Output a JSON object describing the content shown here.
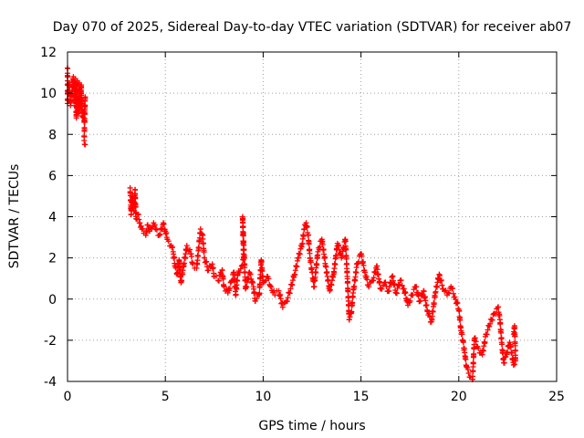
{
  "chart_data": {
    "type": "scatter",
    "title": "Day 070 of 2025, Sidereal Day-to-day VTEC variation (SDTVAR) for receiver ab07",
    "xlabel": "GPS time / hours",
    "ylabel": "SDTVAR / TECUs",
    "xlim": [
      0,
      25
    ],
    "ylim": [
      -4,
      12
    ],
    "xticks": [
      0,
      5,
      10,
      15,
      20,
      25
    ],
    "yticks": [
      -4,
      -2,
      0,
      2,
      4,
      6,
      8,
      10,
      12
    ],
    "grid": true,
    "marker": "+",
    "color": "#ff0000",
    "series": [
      {
        "name": "SDTVAR",
        "points": [
          [
            0.0,
            11.2
          ],
          [
            0.0,
            10.6
          ],
          [
            0.0,
            9.5
          ],
          [
            0.1,
            10.5
          ],
          [
            0.15,
            9.4
          ],
          [
            0.3,
            10.8
          ],
          [
            0.35,
            9.6
          ],
          [
            0.4,
            10.7
          ],
          [
            0.45,
            8.8
          ],
          [
            0.5,
            10.6
          ],
          [
            0.5,
            9.2
          ],
          [
            0.55,
            9.0
          ],
          [
            0.6,
            10.5
          ],
          [
            0.6,
            9.6
          ],
          [
            0.65,
            9.3
          ],
          [
            0.7,
            10.4
          ],
          [
            0.7,
            9.8
          ],
          [
            0.75,
            8.9
          ],
          [
            0.85,
            8.6
          ],
          [
            0.9,
            9.8
          ],
          [
            0.85,
            7.7
          ],
          [
            0.9,
            7.5
          ],
          [
            3.2,
            5.4
          ],
          [
            3.25,
            4.1
          ],
          [
            3.3,
            5.0
          ],
          [
            3.35,
            4.6
          ],
          [
            3.4,
            4.3
          ],
          [
            3.45,
            5.3
          ],
          [
            3.5,
            3.9
          ],
          [
            3.6,
            4.1
          ],
          [
            3.7,
            3.7
          ],
          [
            3.8,
            3.4
          ],
          [
            3.9,
            3.2
          ],
          [
            4.0,
            3.1
          ],
          [
            4.1,
            3.6
          ],
          [
            4.2,
            3.3
          ],
          [
            4.4,
            3.7
          ],
          [
            4.5,
            3.4
          ],
          [
            4.7,
            3.1
          ],
          [
            4.9,
            3.7
          ],
          [
            5.0,
            3.3
          ],
          [
            5.1,
            2.9
          ],
          [
            5.3,
            2.6
          ],
          [
            5.4,
            2.3
          ],
          [
            5.5,
            1.6
          ],
          [
            5.6,
            1.2
          ],
          [
            5.7,
            1.9
          ],
          [
            5.8,
            0.8
          ],
          [
            5.9,
            1.4
          ],
          [
            6.1,
            2.6
          ],
          [
            6.3,
            2.2
          ],
          [
            6.4,
            1.7
          ],
          [
            6.6,
            1.5
          ],
          [
            6.8,
            3.4
          ],
          [
            6.9,
            3.1
          ],
          [
            7.0,
            2.0
          ],
          [
            7.2,
            1.4
          ],
          [
            7.4,
            1.7
          ],
          [
            7.5,
            1.1
          ],
          [
            7.7,
            0.9
          ],
          [
            7.9,
            1.4
          ],
          [
            8.0,
            0.6
          ],
          [
            8.2,
            0.3
          ],
          [
            8.4,
            0.9
          ],
          [
            8.5,
            1.3
          ],
          [
            8.6,
            0.2
          ],
          [
            8.7,
            1.2
          ],
          [
            8.9,
            1.6
          ],
          [
            9.0,
            1.9
          ],
          [
            8.95,
            4.0
          ],
          [
            9.1,
            0.5
          ],
          [
            9.3,
            1.3
          ],
          [
            9.5,
            0.6
          ],
          [
            9.6,
            -0.1
          ],
          [
            9.8,
            0.2
          ],
          [
            9.9,
            1.9
          ],
          [
            10.0,
            0.8
          ],
          [
            10.2,
            1.1
          ],
          [
            10.4,
            0.6
          ],
          [
            10.6,
            0.2
          ],
          [
            10.8,
            0.4
          ],
          [
            11.0,
            -0.4
          ],
          [
            11.2,
            -0.1
          ],
          [
            11.4,
            0.5
          ],
          [
            11.6,
            1.2
          ],
          [
            11.8,
            2.0
          ],
          [
            12.0,
            2.7
          ],
          [
            12.1,
            3.4
          ],
          [
            12.2,
            3.7
          ],
          [
            12.3,
            3.1
          ],
          [
            12.4,
            2.0
          ],
          [
            12.5,
            1.3
          ],
          [
            12.6,
            0.6
          ],
          [
            12.8,
            2.3
          ],
          [
            13.0,
            2.9
          ],
          [
            13.2,
            1.6
          ],
          [
            13.4,
            0.4
          ],
          [
            13.6,
            1.2
          ],
          [
            13.8,
            2.7
          ],
          [
            14.0,
            2.0
          ],
          [
            14.2,
            2.9
          ],
          [
            14.3,
            1.1
          ],
          [
            14.4,
            -1.0
          ],
          [
            14.5,
            -0.7
          ],
          [
            14.6,
            0.3
          ],
          [
            14.8,
            1.7
          ],
          [
            15.0,
            2.2
          ],
          [
            15.2,
            1.3
          ],
          [
            15.4,
            0.6
          ],
          [
            15.6,
            0.9
          ],
          [
            15.8,
            1.6
          ],
          [
            16.0,
            0.5
          ],
          [
            16.2,
            0.8
          ],
          [
            16.4,
            0.4
          ],
          [
            16.6,
            1.1
          ],
          [
            16.8,
            0.3
          ],
          [
            17.0,
            0.9
          ],
          [
            17.2,
            0.5
          ],
          [
            17.4,
            -0.3
          ],
          [
            17.6,
            0.2
          ],
          [
            17.8,
            0.6
          ],
          [
            18.0,
            -0.1
          ],
          [
            18.2,
            0.4
          ],
          [
            18.4,
            -0.6
          ],
          [
            18.6,
            -1.1
          ],
          [
            18.8,
            0.3
          ],
          [
            19.0,
            1.2
          ],
          [
            19.2,
            0.5
          ],
          [
            19.4,
            0.2
          ],
          [
            19.6,
            0.6
          ],
          [
            19.8,
            0.1
          ],
          [
            20.0,
            -0.5
          ],
          [
            20.1,
            -1.4
          ],
          [
            20.2,
            -2.0
          ],
          [
            20.3,
            -2.6
          ],
          [
            20.4,
            -3.3
          ],
          [
            20.5,
            -3.6
          ],
          [
            20.6,
            -3.8
          ],
          [
            20.7,
            -3.9
          ],
          [
            20.8,
            -1.9
          ],
          [
            21.0,
            -2.4
          ],
          [
            21.2,
            -2.7
          ],
          [
            21.4,
            -1.7
          ],
          [
            21.6,
            -1.2
          ],
          [
            21.8,
            -0.7
          ],
          [
            22.0,
            -0.4
          ],
          [
            22.1,
            -1.0
          ],
          [
            22.2,
            -2.2
          ],
          [
            22.3,
            -3.1
          ],
          [
            22.4,
            -2.8
          ],
          [
            22.6,
            -2.1
          ],
          [
            22.7,
            -2.6
          ],
          [
            22.8,
            -3.2
          ],
          [
            22.9,
            -3.0
          ],
          [
            22.85,
            -1.3
          ],
          [
            22.8,
            -1.7
          ]
        ]
      }
    ]
  }
}
